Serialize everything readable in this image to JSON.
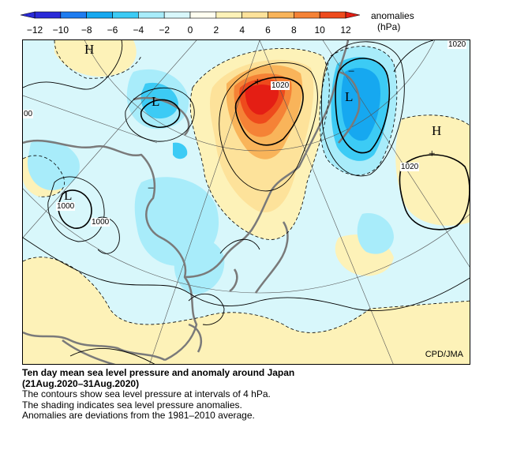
{
  "colorbar": {
    "title": "anomalies",
    "unit": "(hPa)",
    "ticks": [
      "−12",
      "−10",
      "−8",
      "−6",
      "−4",
      "−2",
      "0",
      "2",
      "4",
      "6",
      "8",
      "10",
      "12"
    ],
    "colors": [
      "#2a2ad8",
      "#1e7cf0",
      "#16a8f0",
      "#3ccbf5",
      "#a8ecfa",
      "#d8f7fb",
      "#fffef0",
      "#fdf2b8",
      "#fde29a",
      "#f9b45a",
      "#f58236",
      "#ee4a1c",
      "#e41e14"
    ]
  },
  "map": {
    "labels": {
      "high_nw": "H",
      "high_east": "H",
      "low_north": "L",
      "low_ne": "L",
      "low_west": "L",
      "plus_1": "+",
      "plus_2": "+",
      "minus_1": "−",
      "minus_2": "−",
      "contour_1020_a": "1020",
      "contour_1020_b": "1020",
      "contour_1020_c": "1020",
      "contour_1000_a": "1000",
      "contour_1000_b": "1000",
      "contour_00": "00"
    },
    "credit": "CPD/JMA"
  },
  "caption": {
    "title_line1": "Ten day mean sea level pressure and anomaly around Japan",
    "title_line2": "(21Aug.2020–31Aug.2020)",
    "line1": "The contours show sea level pressure at intervals of 4 hPa.",
    "line2": "The shading indicates sea level pressure anomalies.",
    "line3": "Anomalies are deviations from the 1981–2010 average."
  }
}
